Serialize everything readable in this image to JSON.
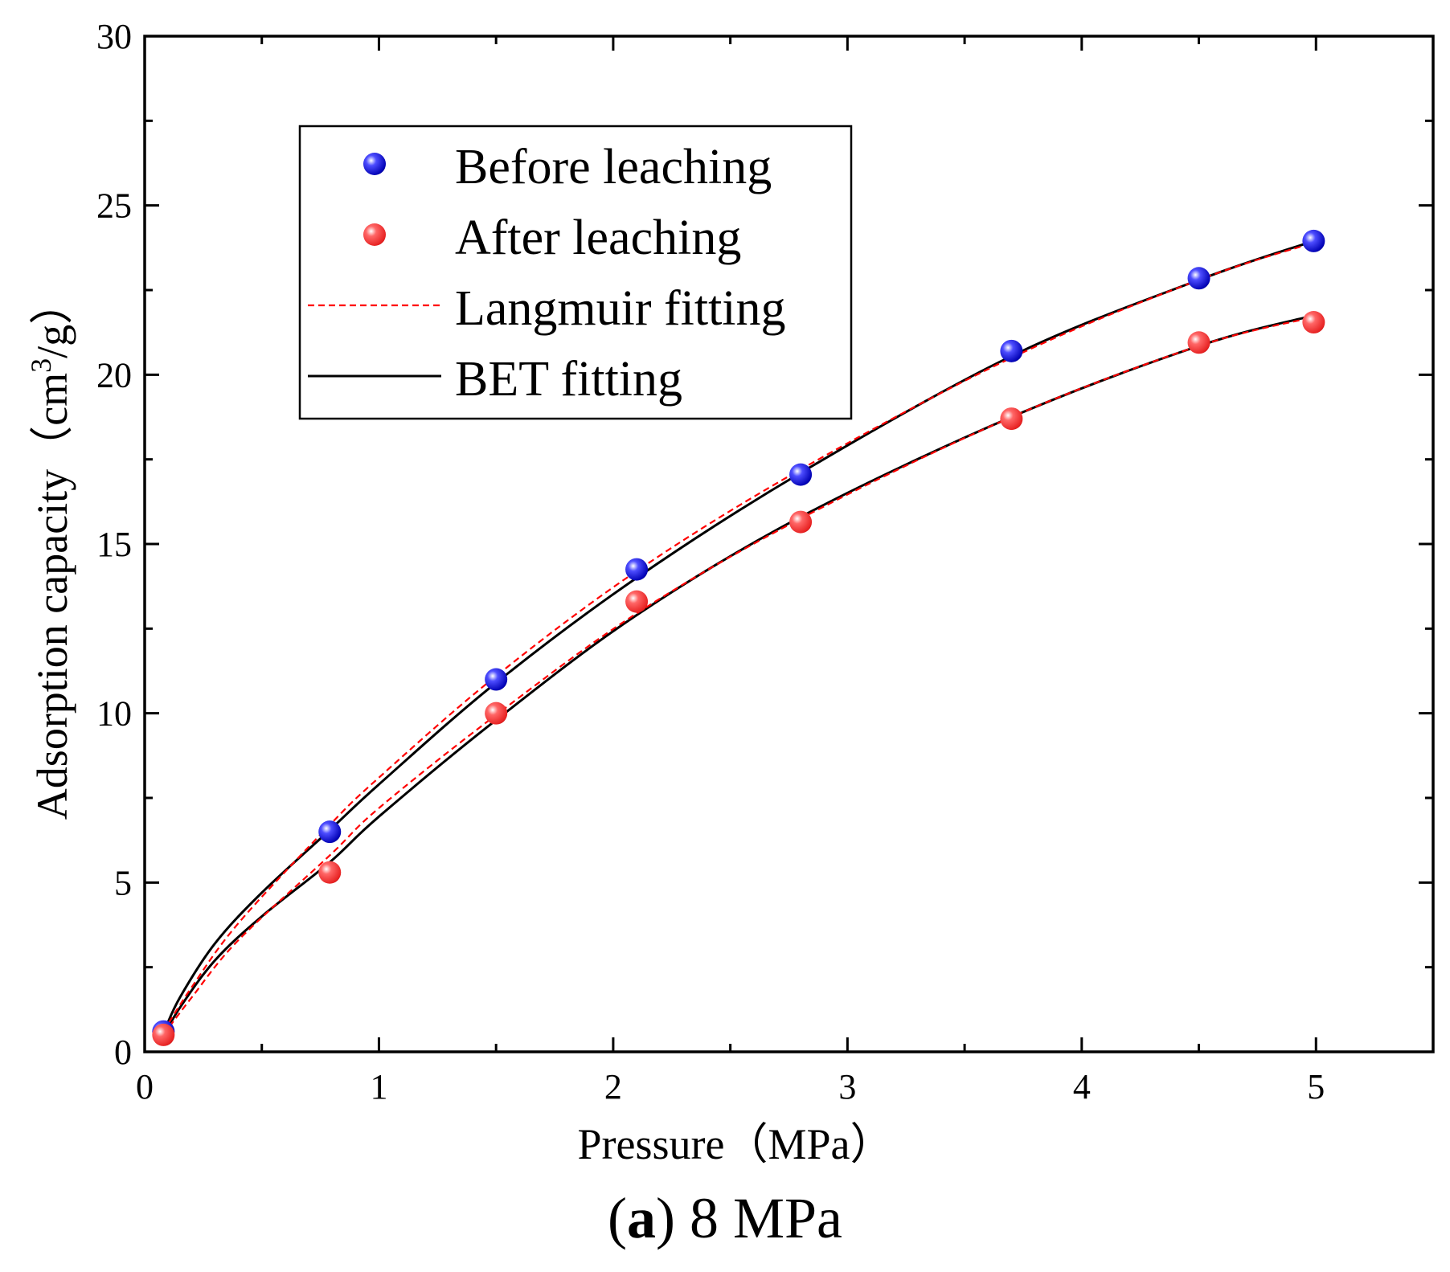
{
  "chart_data": {
    "type": "scatter",
    "caption": {
      "letter": "a",
      "open": "(",
      "close": ")",
      "rest": " 8 MPa"
    },
    "xlabel": "Pressure（MPa）",
    "ylabel": "Adsorption capacity（cm³/g）",
    "ylabel_parts": {
      "main": "Adsorption capacity（cm",
      "sup": "3",
      "tail": "/g）"
    },
    "xlim": [
      0,
      5.5
    ],
    "ylim": [
      0,
      30
    ],
    "xticks": [
      0,
      1,
      2,
      3,
      4,
      5
    ],
    "yticks": [
      0,
      5,
      10,
      15,
      20,
      25,
      30
    ],
    "xtick_labels": [
      "0",
      "1",
      "2",
      "3",
      "4",
      "5"
    ],
    "ytick_labels": [
      "0",
      "5",
      "10",
      "15",
      "20",
      "25",
      "30"
    ],
    "legend_position": "upper-left",
    "series": [
      {
        "name": "Before leaching",
        "kind": "points",
        "color": "#1a1aff",
        "x": [
          0.08,
          0.79,
          1.5,
          2.1,
          2.8,
          3.7,
          4.5,
          4.99
        ],
        "y": [
          0.6,
          6.5,
          11.0,
          14.25,
          17.05,
          20.7,
          22.85,
          23.95
        ]
      },
      {
        "name": "After leaching",
        "kind": "points",
        "color": "#ff3333",
        "x": [
          0.08,
          0.79,
          1.5,
          2.1,
          2.8,
          3.7,
          4.5,
          4.99
        ],
        "y": [
          0.5,
          5.3,
          10.0,
          13.3,
          15.65,
          18.7,
          20.95,
          21.55
        ]
      },
      {
        "name": "Langmuir fitting",
        "kind": "fit-dashed",
        "color": "#ff0000",
        "curves": [
          {
            "x": [
              0.08,
              0.2,
              0.4,
              0.79,
              1.0,
              1.5,
              2.1,
              2.8,
              3.7,
              4.5,
              4.99
            ],
            "y": [
              0.6,
              1.9,
              3.8,
              6.7,
              8.1,
              11.1,
              14.2,
              17.2,
              20.5,
              22.8,
              23.9
            ]
          },
          {
            "x": [
              0.08,
              0.2,
              0.4,
              0.79,
              1.0,
              1.5,
              2.1,
              2.8,
              3.7,
              4.5,
              4.99
            ],
            "y": [
              0.5,
              1.6,
              3.3,
              5.8,
              7.2,
              9.95,
              12.95,
              15.75,
              18.75,
              20.85,
              21.7
            ]
          }
        ]
      },
      {
        "name": "BET fitting",
        "kind": "fit-solid",
        "color": "#000000",
        "curves": [
          {
            "x": [
              0.08,
              0.15,
              0.3,
              0.5,
              0.79,
              1.0,
              1.5,
              2.1,
              2.8,
              3.7,
              4.5,
              4.99
            ],
            "y": [
              0.55,
              1.6,
              3.2,
              4.7,
              6.55,
              7.9,
              10.9,
              14.0,
              17.1,
              20.55,
              22.8,
              23.95
            ]
          },
          {
            "x": [
              0.08,
              0.15,
              0.3,
              0.5,
              0.79,
              1.0,
              1.5,
              2.1,
              2.8,
              3.7,
              4.5,
              4.99
            ],
            "y": [
              0.45,
              1.3,
              2.7,
              4.0,
              5.6,
              6.95,
              9.8,
              12.9,
              15.8,
              18.75,
              20.85,
              21.75
            ]
          }
        ]
      }
    ]
  }
}
